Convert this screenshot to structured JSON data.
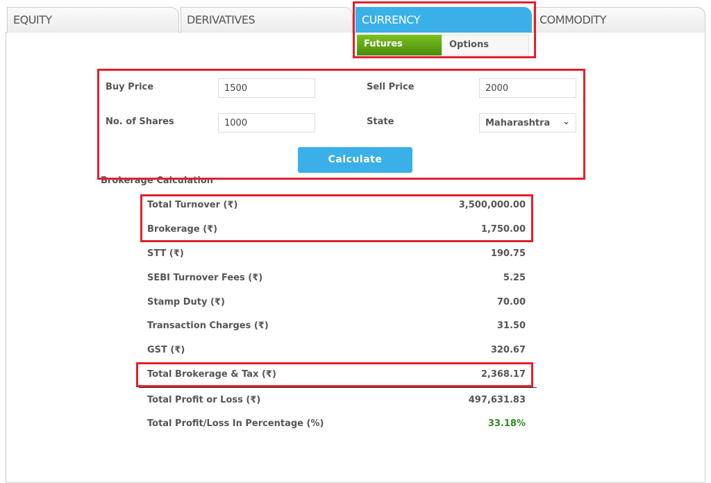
{
  "tabs": [
    {
      "label": "EQUITY"
    },
    {
      "label": "DERIVATIVES"
    },
    {
      "label": "CURRENCY",
      "active": true
    },
    {
      "label": "COMMODITY"
    }
  ],
  "subtabs": [
    {
      "label": "Futures",
      "active": true
    },
    {
      "label": "Options"
    }
  ],
  "form": {
    "buy_price_label": "Buy Price",
    "buy_price": "1500",
    "sell_price_label": "Sell Price",
    "sell_price": "2000",
    "shares_label": "No. of Shares",
    "shares": "1000",
    "state_label": "State",
    "state": "Maharashtra",
    "calculate_label": "Calculate"
  },
  "results": {
    "heading": "Brokerage Calculation",
    "rows": [
      {
        "label": "Total Turnover (₹)",
        "value": "3,500,000.00"
      },
      {
        "label": "Brokerage (₹)",
        "value": "1,750.00"
      },
      {
        "label": "STT (₹)",
        "value": "190.75"
      },
      {
        "label": "SEBI Turnover Fees (₹)",
        "value": "5.25"
      },
      {
        "label": "Stamp Duty (₹)",
        "value": "70.00"
      },
      {
        "label": "Transaction Charges (₹)",
        "value": "31.50"
      },
      {
        "label": "GST (₹)",
        "value": "320.67"
      },
      {
        "label": "Total Brokerage & Tax (₹)",
        "value": "2,368.17"
      },
      {
        "label": "Total Profit or Loss (₹)",
        "value": "497,631.83"
      },
      {
        "label": "Total Profit/Loss In Percentage (%)",
        "value": "33.18%"
      }
    ]
  },
  "colors": {
    "accent": "#3bb0e8",
    "futures": "#5a9a12",
    "highlight": "#e0202c",
    "profit": "#2e8b1e"
  }
}
